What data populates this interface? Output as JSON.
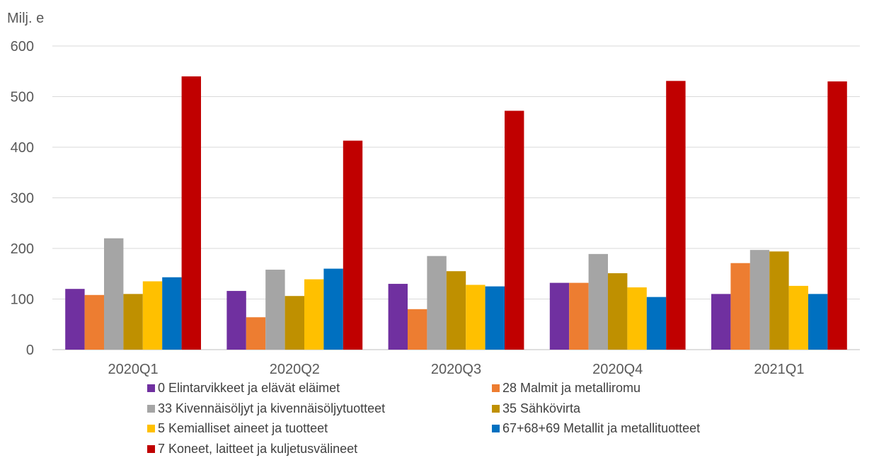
{
  "chart_data": {
    "type": "bar",
    "ylabel": "Milj. e",
    "ylim": [
      0,
      600
    ],
    "yticks": [
      0,
      100,
      200,
      300,
      400,
      500,
      600
    ],
    "grid": true,
    "legend_position": "bottom",
    "categories": [
      "2020Q1",
      "2020Q2",
      "2020Q3",
      "2020Q4",
      "2021Q1"
    ],
    "series": [
      {
        "name": "0 Elintarvikkeet ja elävät eläimet",
        "color": "#7030a0",
        "values": [
          120,
          116,
          130,
          132,
          110
        ]
      },
      {
        "name": "28 Malmit ja metalliromu",
        "color": "#ed7d31",
        "values": [
          108,
          64,
          80,
          132,
          171
        ]
      },
      {
        "name": "33 Kivennäisöljyt ja kivennäisöljytuotteet",
        "color": "#a5a5a5",
        "values": [
          220,
          158,
          185,
          189,
          197
        ]
      },
      {
        "name": "35 Sähkövirta",
        "color": "#bf9000",
        "values": [
          110,
          106,
          155,
          151,
          194
        ]
      },
      {
        "name": "5 Kemialliset aineet ja tuotteet",
        "color": "#ffc000",
        "values": [
          135,
          139,
          128,
          123,
          126
        ]
      },
      {
        "name": "67+68+69 Metallit ja metallituotteet",
        "color": "#0070c0",
        "values": [
          143,
          160,
          125,
          104,
          110
        ]
      },
      {
        "name": "7 Koneet, laitteet ja kuljetusvälineet",
        "color": "#c00000",
        "values": [
          540,
          413,
          472,
          531,
          530
        ]
      }
    ]
  }
}
